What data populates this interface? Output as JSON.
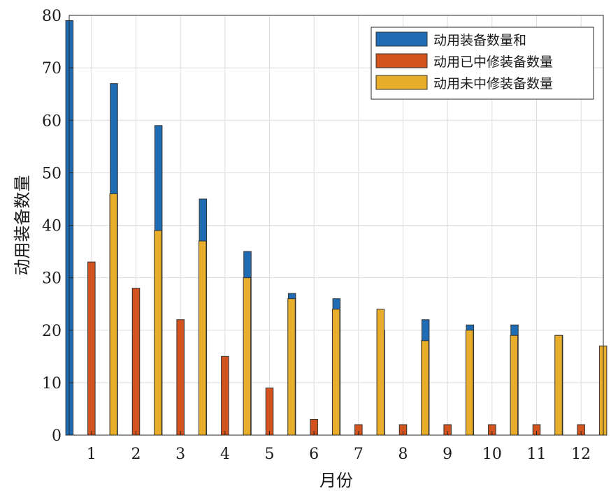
{
  "chart_data": {
    "type": "bar",
    "title": "",
    "xlabel": "月份",
    "ylabel": "动用装备数量",
    "categories": [
      "1",
      "2",
      "3",
      "4",
      "5",
      "6",
      "7",
      "8",
      "9",
      "10",
      "11",
      "12"
    ],
    "ylim": [
      0,
      80
    ],
    "yticks": [
      0,
      10,
      20,
      30,
      40,
      50,
      60,
      70,
      80
    ],
    "grid": true,
    "legend_position": "top-right",
    "series": [
      {
        "name": "动用装备数量和",
        "color": "#1F6CB5",
        "values": [
          79,
          67,
          59,
          45,
          35,
          27,
          26,
          20,
          22,
          21,
          21,
          19
        ]
      },
      {
        "name": "动用已中修装备数量",
        "color": "#D2531E",
        "values": [
          33,
          28,
          22,
          15,
          9,
          3,
          2,
          2,
          2,
          2,
          2,
          2
        ]
      },
      {
        "name": "动用未中修装备数量",
        "color": "#E8AD2B",
        "values": [
          46,
          39,
          37,
          30,
          26,
          24,
          24,
          18,
          20,
          19,
          19,
          17
        ]
      }
    ]
  }
}
